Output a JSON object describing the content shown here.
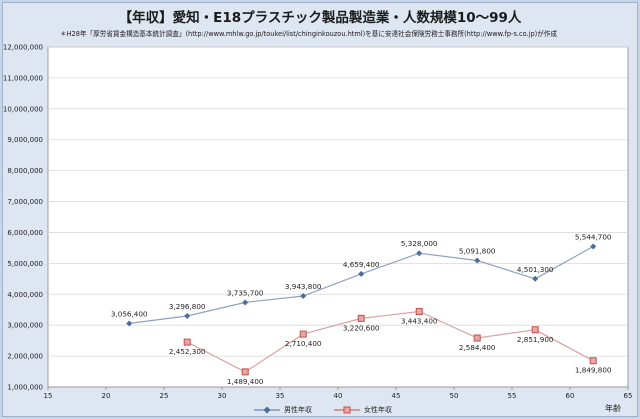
{
  "chart_data": {
    "type": "line",
    "title": "【年収】愛知・E18プラスチック製品製造業・人数規模10～99人",
    "subtitle": "＊H28年「厚労省賃金構造基本統計調査」(http://www.mhlw.go.jp/toukei/list/chinginkouzou.html)を基に安達社会保険労務士事務所(http://www.fp-s.co.jp)が作成",
    "xlabel": "年齢",
    "ylabel": "",
    "xlim": [
      15,
      65
    ],
    "ylim": [
      1000000,
      12000000
    ],
    "x_ticks": [
      "15",
      "20",
      "25",
      "30",
      "35",
      "40",
      "45",
      "50",
      "55",
      "60",
      "65"
    ],
    "y_ticks": [
      "1,000,000",
      "2,000,000",
      "3,000,000",
      "4,000,000",
      "5,000,000",
      "6,000,000",
      "7,000,000",
      "8,000,000",
      "9,000,000",
      "10,000,000",
      "11,000,000",
      "12,000,000"
    ],
    "grid": true,
    "legend_position": "bottom",
    "series": [
      {
        "name": "男性年収",
        "color": "#4a6f9e",
        "marker": "diamond",
        "x": [
          22,
          27,
          32,
          37,
          42,
          47,
          52,
          57,
          62
        ],
        "values": [
          3056400,
          3296800,
          3735700,
          3943800,
          4659400,
          5328000,
          5091800,
          4501300,
          5544700
        ],
        "labels": [
          "3,056,400",
          "3,296,800",
          "3,735,700",
          "3,943,800",
          "4,659,400",
          "5,328,000",
          "5,091,800",
          "4,501,300",
          "5,544,700"
        ],
        "label_pos": "above"
      },
      {
        "name": "女性年収",
        "color": "#c0504d",
        "marker": "square",
        "x": [
          27,
          32,
          37,
          42,
          47,
          52,
          57,
          62
        ],
        "values": [
          2452300,
          1489400,
          2710400,
          3220600,
          3443400,
          2584400,
          2851900,
          1849800
        ],
        "labels": [
          "2,452,300",
          "1,489,400",
          "2,710,400",
          "3,220,600",
          "3,443,400",
          "2,584,400",
          "2,851,900",
          "1,849,800"
        ],
        "label_pos": "below"
      }
    ]
  }
}
